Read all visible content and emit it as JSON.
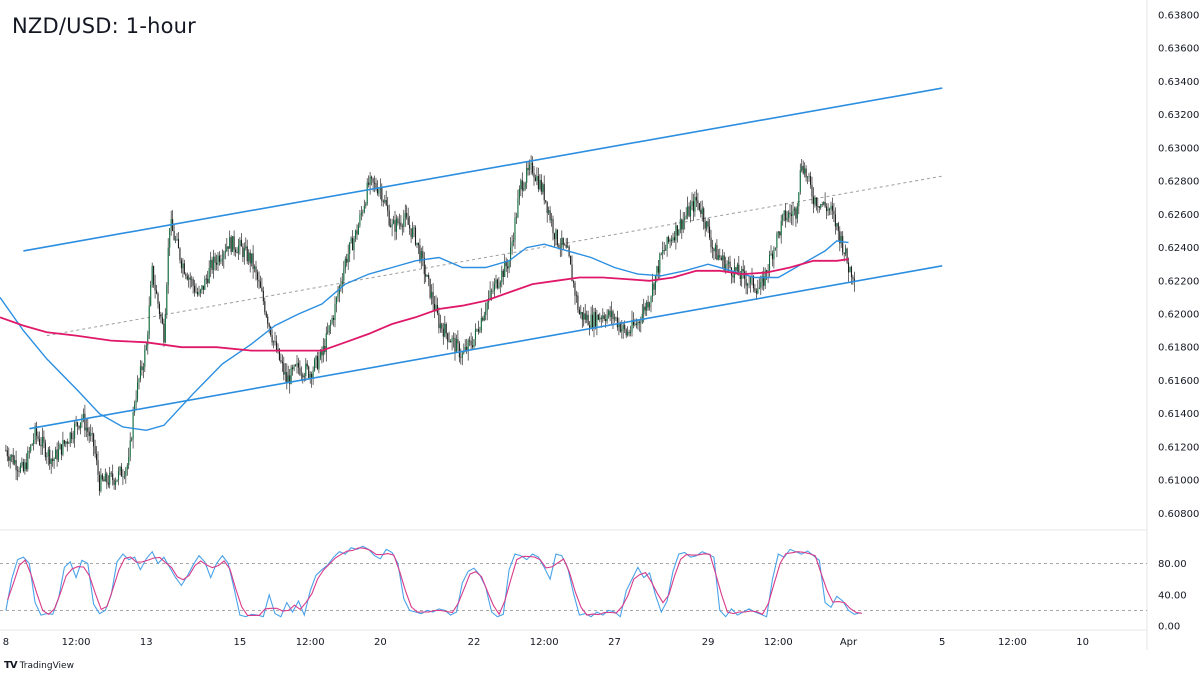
{
  "chart_data": {
    "type": "candlestick",
    "title": "NZD/USD: 1-hour",
    "brand": "TradingView",
    "brand_logo": "TV",
    "price_axis": {
      "ticks": [
        "0.63800",
        "0.63600",
        "0.63400",
        "0.63200",
        "0.63000",
        "0.62800",
        "0.62600",
        "0.62400",
        "0.62200",
        "0.62000",
        "0.61800",
        "0.61600",
        "0.61400",
        "0.61200",
        "0.61000",
        "0.60800"
      ],
      "range": [
        0.607,
        0.6389
      ]
    },
    "time_axis": {
      "ticks": [
        {
          "label": "8",
          "index": 0
        },
        {
          "label": "12:00",
          "index": 12
        },
        {
          "label": "13",
          "index": 24
        },
        {
          "label": "15",
          "index": 40
        },
        {
          "label": "12:00",
          "index": 52
        },
        {
          "label": "20",
          "index": 64
        },
        {
          "label": "22",
          "index": 80
        },
        {
          "label": "12:00",
          "index": 92
        },
        {
          "label": "27",
          "index": 104
        },
        {
          "label": "29",
          "index": 120
        },
        {
          "label": "12:00",
          "index": 132
        },
        {
          "label": "Apr",
          "index": 144
        },
        {
          "label": "5",
          "index": 160
        },
        {
          "label": "12:00",
          "index": 172
        },
        {
          "label": "10",
          "index": 184
        }
      ],
      "range": [
        -1,
        195
      ]
    },
    "close_path": [
      [
        0,
        0.6118
      ],
      [
        3,
        0.6105
      ],
      [
        5,
        0.6128
      ],
      [
        8,
        0.6112
      ],
      [
        10,
        0.6122
      ],
      [
        13,
        0.6138
      ],
      [
        15,
        0.6121
      ],
      [
        16,
        0.6098
      ],
      [
        19,
        0.6102
      ],
      [
        21,
        0.611
      ],
      [
        22,
        0.6148
      ],
      [
        24,
        0.618
      ],
      [
        25,
        0.6225
      ],
      [
        27,
        0.6188
      ],
      [
        28,
        0.6255
      ],
      [
        30,
        0.6232
      ],
      [
        33,
        0.621
      ],
      [
        35,
        0.6228
      ],
      [
        38,
        0.6243
      ],
      [
        40,
        0.624
      ],
      [
        42,
        0.6232
      ],
      [
        44,
        0.6208
      ],
      [
        46,
        0.618
      ],
      [
        48,
        0.616
      ],
      [
        50,
        0.6168
      ],
      [
        52,
        0.6165
      ],
      [
        54,
        0.6175
      ],
      [
        56,
        0.62
      ],
      [
        58,
        0.6232
      ],
      [
        60,
        0.625
      ],
      [
        62,
        0.6278
      ],
      [
        64,
        0.6276
      ],
      [
        66,
        0.6252
      ],
      [
        68,
        0.6258
      ],
      [
        70,
        0.6246
      ],
      [
        72,
        0.622
      ],
      [
        74,
        0.6195
      ],
      [
        76,
        0.6185
      ],
      [
        78,
        0.6175
      ],
      [
        80,
        0.6185
      ],
      [
        82,
        0.6205
      ],
      [
        84,
        0.622
      ],
      [
        86,
        0.6232
      ],
      [
        88,
        0.6278
      ],
      [
        90,
        0.6288
      ],
      [
        92,
        0.6272
      ],
      [
        94,
        0.6246
      ],
      [
        96,
        0.6236
      ],
      [
        98,
        0.62
      ],
      [
        100,
        0.6196
      ],
      [
        102,
        0.62
      ],
      [
        104,
        0.6198
      ],
      [
        106,
        0.6188
      ],
      [
        108,
        0.6195
      ],
      [
        110,
        0.621
      ],
      [
        112,
        0.6235
      ],
      [
        114,
        0.6248
      ],
      [
        116,
        0.6258
      ],
      [
        118,
        0.6268
      ],
      [
        119,
        0.6262
      ],
      [
        121,
        0.6238
      ],
      [
        123,
        0.623
      ],
      [
        126,
        0.6222
      ],
      [
        129,
        0.6215
      ],
      [
        131,
        0.6238
      ],
      [
        133,
        0.6258
      ],
      [
        135,
        0.6262
      ],
      [
        136,
        0.6292
      ],
      [
        138,
        0.627
      ],
      [
        141,
        0.6262
      ],
      [
        143,
        0.6242
      ],
      [
        144,
        0.6228
      ],
      [
        145,
        0.6224
      ]
    ],
    "sma_blue": [
      [
        -1,
        0.621
      ],
      [
        3,
        0.619
      ],
      [
        7,
        0.6173
      ],
      [
        12,
        0.6155
      ],
      [
        16,
        0.614
      ],
      [
        20,
        0.6132
      ],
      [
        24,
        0.613
      ],
      [
        27,
        0.6133
      ],
      [
        32,
        0.6152
      ],
      [
        37,
        0.617
      ],
      [
        42,
        0.6182
      ],
      [
        46,
        0.6193
      ],
      [
        50,
        0.62
      ],
      [
        54,
        0.6206
      ],
      [
        58,
        0.6218
      ],
      [
        62,
        0.6224
      ],
      [
        66,
        0.6228
      ],
      [
        70,
        0.6232
      ],
      [
        74,
        0.6234
      ],
      [
        78,
        0.6228
      ],
      [
        82,
        0.6228
      ],
      [
        86,
        0.6232
      ],
      [
        89,
        0.624
      ],
      [
        92,
        0.6242
      ],
      [
        96,
        0.6238
      ],
      [
        100,
        0.6234
      ],
      [
        104,
        0.6228
      ],
      [
        108,
        0.6224
      ],
      [
        112,
        0.6223
      ],
      [
        116,
        0.6226
      ],
      [
        120,
        0.623
      ],
      [
        124,
        0.6226
      ],
      [
        128,
        0.6222
      ],
      [
        132,
        0.6222
      ],
      [
        136,
        0.623
      ],
      [
        140,
        0.6238
      ],
      [
        142,
        0.6244
      ],
      [
        144,
        0.6243
      ]
    ],
    "sma_magenta": [
      [
        -1,
        0.6198
      ],
      [
        3,
        0.6193
      ],
      [
        7,
        0.6189
      ],
      [
        12,
        0.6187
      ],
      [
        18,
        0.6184
      ],
      [
        24,
        0.6183
      ],
      [
        30,
        0.618
      ],
      [
        36,
        0.618
      ],
      [
        42,
        0.6178
      ],
      [
        48,
        0.6178
      ],
      [
        54,
        0.6178
      ],
      [
        58,
        0.6183
      ],
      [
        62,
        0.6188
      ],
      [
        66,
        0.6194
      ],
      [
        70,
        0.6198
      ],
      [
        74,
        0.6203
      ],
      [
        78,
        0.6205
      ],
      [
        82,
        0.6208
      ],
      [
        86,
        0.6213
      ],
      [
        90,
        0.6218
      ],
      [
        94,
        0.622
      ],
      [
        98,
        0.6222
      ],
      [
        102,
        0.6222
      ],
      [
        106,
        0.6221
      ],
      [
        110,
        0.622
      ],
      [
        114,
        0.6222
      ],
      [
        118,
        0.6226
      ],
      [
        122,
        0.6226
      ],
      [
        126,
        0.6224
      ],
      [
        130,
        0.6225
      ],
      [
        134,
        0.6228
      ],
      [
        138,
        0.6232
      ],
      [
        142,
        0.6232
      ],
      [
        144,
        0.6233
      ]
    ],
    "channel_upper": [
      [
        3,
        0.6238
      ],
      [
        160,
        0.6336
      ]
    ],
    "channel_lower": [
      [
        4,
        0.6131
      ],
      [
        160,
        0.6229
      ]
    ],
    "channel_mid": [
      [
        7,
        0.6187
      ],
      [
        160,
        0.6283
      ]
    ],
    "oscillator": {
      "levels": [
        "80.00",
        "40.00",
        "0.00"
      ],
      "level_values": [
        80,
        40,
        0
      ],
      "dashed_levels": [
        80,
        20
      ],
      "range": [
        -5,
        110
      ],
      "path": [
        [
          0,
          20
        ],
        [
          1,
          60
        ],
        [
          2,
          85
        ],
        [
          3,
          88
        ],
        [
          4,
          80
        ],
        [
          5,
          30
        ],
        [
          6,
          14
        ],
        [
          7,
          16
        ],
        [
          8,
          15
        ],
        [
          9,
          35
        ],
        [
          10,
          75
        ],
        [
          11,
          82
        ],
        [
          12,
          62
        ],
        [
          13,
          84
        ],
        [
          14,
          80
        ],
        [
          15,
          28
        ],
        [
          16,
          16
        ],
        [
          17,
          20
        ],
        [
          18,
          40
        ],
        [
          19,
          82
        ],
        [
          20,
          92
        ],
        [
          21,
          85
        ],
        [
          22,
          88
        ],
        [
          23,
          72
        ],
        [
          24,
          86
        ],
        [
          25,
          95
        ],
        [
          26,
          80
        ],
        [
          27,
          88
        ],
        [
          28,
          75
        ],
        [
          29,
          62
        ],
        [
          30,
          52
        ],
        [
          31,
          64
        ],
        [
          32,
          78
        ],
        [
          33,
          90
        ],
        [
          34,
          82
        ],
        [
          35,
          62
        ],
        [
          36,
          80
        ],
        [
          37,
          90
        ],
        [
          38,
          80
        ],
        [
          39,
          48
        ],
        [
          40,
          14
        ],
        [
          41,
          12
        ],
        [
          42,
          15
        ],
        [
          43,
          14
        ],
        [
          44,
          12
        ],
        [
          45,
          40
        ],
        [
          46,
          16
        ],
        [
          47,
          12
        ],
        [
          48,
          30
        ],
        [
          49,
          18
        ],
        [
          50,
          32
        ],
        [
          51,
          14
        ],
        [
          52,
          45
        ],
        [
          53,
          65
        ],
        [
          54,
          72
        ],
        [
          55,
          78
        ],
        [
          56,
          88
        ],
        [
          57,
          95
        ],
        [
          58,
          92
        ],
        [
          59,
          100
        ],
        [
          60,
          98
        ],
        [
          61,
          102
        ],
        [
          62,
          98
        ],
        [
          63,
          90
        ],
        [
          64,
          86
        ],
        [
          65,
          98
        ],
        [
          66,
          94
        ],
        [
          67,
          80
        ],
        [
          68,
          35
        ],
        [
          69,
          20
        ],
        [
          70,
          18
        ],
        [
          71,
          16
        ],
        [
          72,
          20
        ],
        [
          73,
          18
        ],
        [
          74,
          22
        ],
        [
          75,
          20
        ],
        [
          76,
          14
        ],
        [
          77,
          18
        ],
        [
          78,
          55
        ],
        [
          79,
          70
        ],
        [
          80,
          74
        ],
        [
          81,
          65
        ],
        [
          82,
          50
        ],
        [
          83,
          18
        ],
        [
          84,
          12
        ],
        [
          85,
          15
        ],
        [
          86,
          72
        ],
        [
          87,
          92
        ],
        [
          88,
          90
        ],
        [
          89,
          85
        ],
        [
          90,
          92
        ],
        [
          91,
          88
        ],
        [
          92,
          75
        ],
        [
          93,
          60
        ],
        [
          94,
          92
        ],
        [
          95,
          90
        ],
        [
          96,
          75
        ],
        [
          97,
          42
        ],
        [
          98,
          14
        ],
        [
          99,
          16
        ],
        [
          100,
          12
        ],
        [
          101,
          18
        ],
        [
          102,
          14
        ],
        [
          103,
          20
        ],
        [
          104,
          18
        ],
        [
          105,
          12
        ],
        [
          106,
          45
        ],
        [
          107,
          60
        ],
        [
          108,
          75
        ],
        [
          109,
          62
        ],
        [
          110,
          68
        ],
        [
          111,
          40
        ],
        [
          112,
          18
        ],
        [
          113,
          32
        ],
        [
          114,
          70
        ],
        [
          115,
          92
        ],
        [
          116,
          94
        ],
        [
          117,
          88
        ],
        [
          118,
          90
        ],
        [
          119,
          95
        ],
        [
          120,
          92
        ],
        [
          121,
          88
        ],
        [
          122,
          20
        ],
        [
          123,
          12
        ],
        [
          124,
          22
        ],
        [
          125,
          14
        ],
        [
          126,
          18
        ],
        [
          127,
          22
        ],
        [
          128,
          18
        ],
        [
          129,
          15
        ],
        [
          130,
          12
        ],
        [
          131,
          60
        ],
        [
          132,
          92
        ],
        [
          133,
          88
        ],
        [
          134,
          98
        ],
        [
          135,
          95
        ],
        [
          136,
          92
        ],
        [
          137,
          96
        ],
        [
          138,
          90
        ],
        [
          139,
          84
        ],
        [
          140,
          30
        ],
        [
          141,
          24
        ],
        [
          142,
          38
        ],
        [
          143,
          32
        ],
        [
          144,
          20
        ],
        [
          145,
          15
        ],
        [
          146,
          17
        ]
      ]
    },
    "colors": {
      "bull": "#0f6e3e",
      "bear": "#1e1e1e",
      "wick": "#2a2a2a",
      "channel": "#2b8ee0",
      "midline": "#9e9e9e",
      "sma_blue": "#2b8ee0",
      "sma_magenta": "#e0186a",
      "stoch_k": "#4aa3e8",
      "stoch_d": "#d83b8a",
      "grid": "#d9d9d9"
    }
  }
}
